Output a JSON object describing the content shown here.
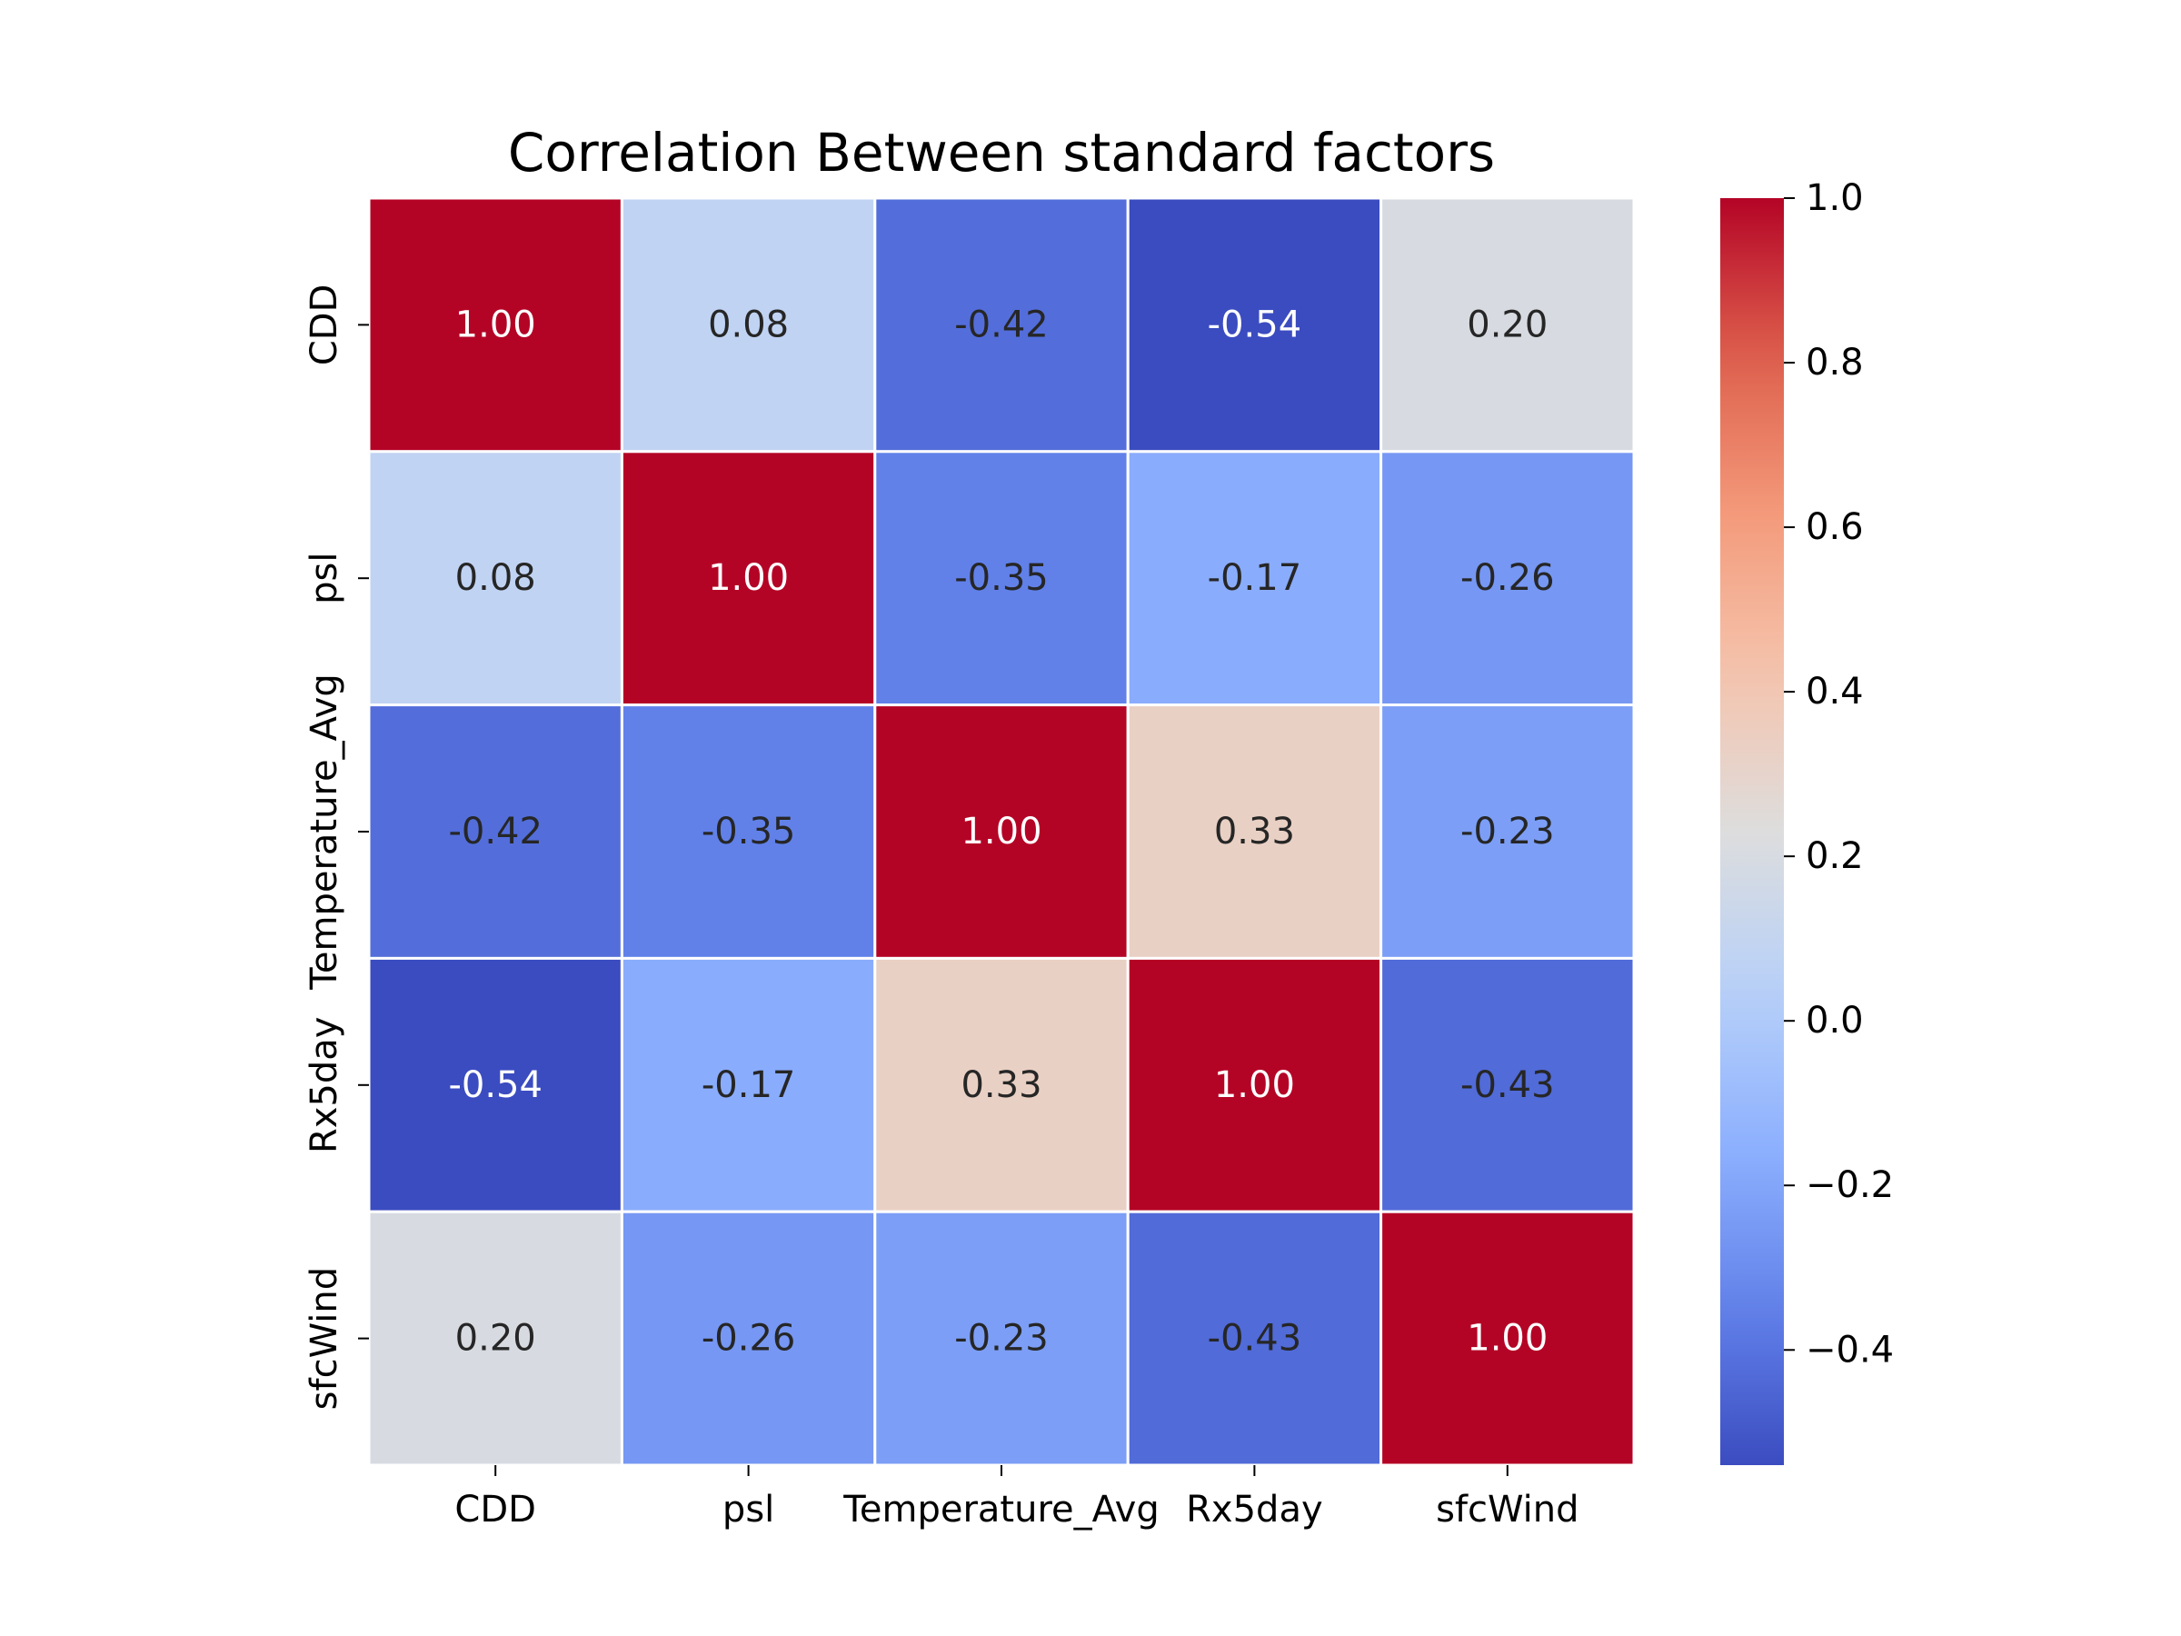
{
  "chart_data": {
    "type": "heatmap",
    "title": "Correlation Between standard factors",
    "xlabel": "",
    "ylabel": "",
    "x_categories": [
      "CDD",
      "psl",
      "Temperature_Avg",
      "Rx5day",
      "sfcWind"
    ],
    "y_categories": [
      "CDD",
      "psl",
      "Temperature_Avg",
      "Rx5day",
      "sfcWind"
    ],
    "matrix": [
      [
        1.0,
        0.08,
        -0.42,
        -0.54,
        0.2
      ],
      [
        0.08,
        1.0,
        -0.35,
        -0.17,
        -0.26
      ],
      [
        -0.42,
        -0.35,
        1.0,
        0.33,
        -0.23
      ],
      [
        -0.54,
        -0.17,
        0.33,
        1.0,
        -0.43
      ],
      [
        0.2,
        -0.26,
        -0.23,
        -0.43,
        1.0
      ]
    ],
    "annotation_format": "0.00",
    "colormap": "coolwarm",
    "color_range": [
      -0.54,
      1.0
    ],
    "colorbar": {
      "ticks": [
        -0.4,
        -0.2,
        0.0,
        0.2,
        0.4,
        0.6,
        0.8,
        1.0
      ],
      "tick_labels": [
        "−0.4",
        "−0.2",
        "0.0",
        "0.2",
        "0.4",
        "0.6",
        "0.8",
        "1.0"
      ],
      "placement": "right"
    },
    "cell_border_color": "#ffffff"
  }
}
